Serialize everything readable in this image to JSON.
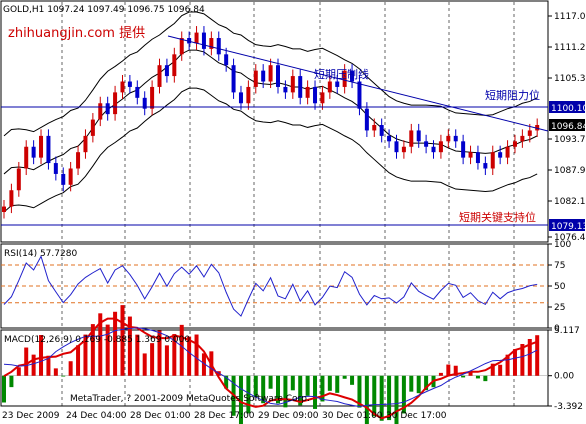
{
  "header": {
    "symbol_info": "GOLD,H1  1097.24 1097.49 1096.75 1096.84",
    "watermark": "zhihuangjin.com 提供"
  },
  "price_axis": {
    "ticks": [
      "1117.05",
      "1111.20",
      "1105.35",
      "1099.50",
      "1093.78",
      "1087.95",
      "1082.10",
      "1076.40"
    ],
    "current_price_label": "1096.84",
    "resistance_value_label": "1100.10",
    "support_value_label": "1079.13"
  },
  "annotations": {
    "trendline_label": "短期压制线",
    "resistance_label": "短期阻力位",
    "support_label": "短期关键支持位"
  },
  "rsi": {
    "title": "RSI(14) 57.7280",
    "ticks": [
      "100",
      "75",
      "50",
      "25",
      "0"
    ]
  },
  "macd": {
    "title": "MACD(12,26,9) 0.169 -0.885 1.369 0.000",
    "ticks": [
      "5.117",
      "0.00",
      "-3.392"
    ]
  },
  "copyright": "MetaTrader, ? 2001-2009 MetaQuotes Software Corp.",
  "time_axis": {
    "labels": [
      "23 Dec 2009",
      "24 Dec 04:00",
      "28 Dec 01:00",
      "28 Dec 17:00",
      "29 Dec 09:00",
      "30 Dec 01:00",
      "30 Dec 17:00"
    ]
  },
  "colors": {
    "bull_candle": "#cc0000",
    "bear_candle": "#0000cc",
    "bands": "#000000",
    "resistance_line": "#0000aa",
    "support_line": "#0000aa",
    "trendline": "#0000aa",
    "label_red": "#cc0000",
    "rsi_line": "#2222cc",
    "rsi_level": "#e07020",
    "macd_pos": "#dd0000",
    "macd_neg": "#008800",
    "macd_signal_red": "#dd0000",
    "macd_signal_blue": "#2222cc"
  }
}
